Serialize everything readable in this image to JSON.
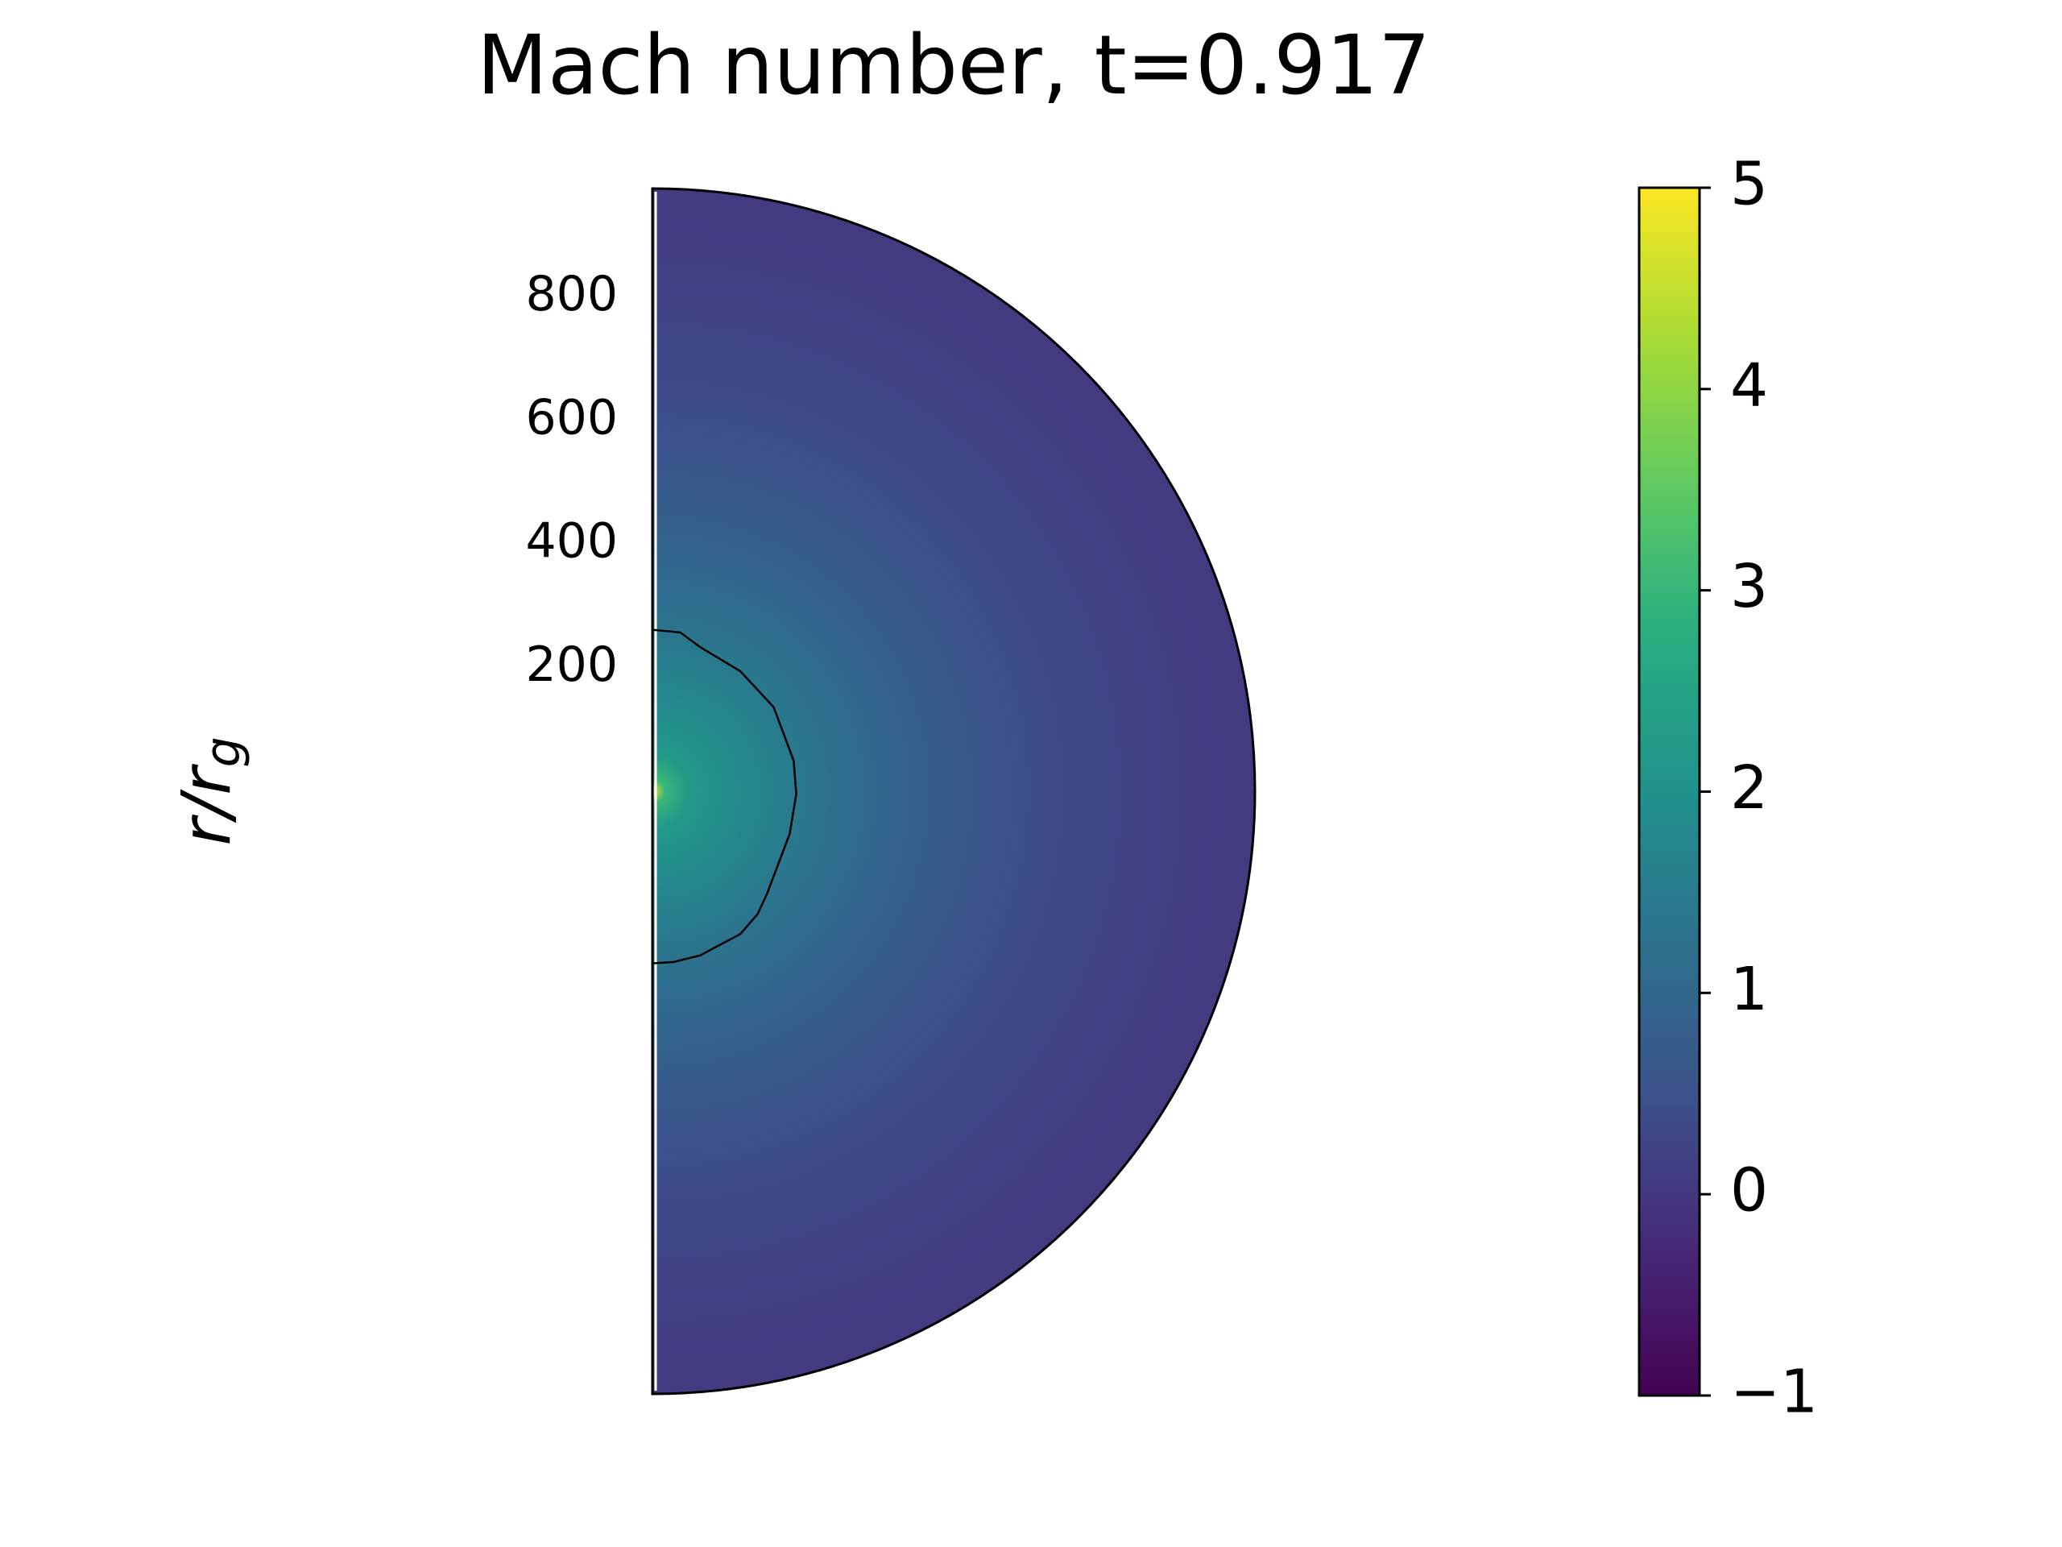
{
  "chart_data": {
    "type": "polar-heatmap",
    "title": "Mach number, t=0.917",
    "ylabel": "r/r_g",
    "rlim": [
      0,
      975
    ],
    "rticks": [
      200,
      400,
      600,
      800
    ],
    "profile": {
      "r": [
        0,
        20,
        60,
        150,
        270,
        400,
        600,
        800,
        975
      ],
      "values": [
        4.8,
        3.0,
        2.2,
        1.8,
        1.3,
        0.9,
        0.45,
        0.2,
        0.05
      ]
    },
    "colorbar": {
      "lim": [
        -1,
        5
      ],
      "ticks": [
        {
          "value": -1,
          "label": "−1"
        },
        0,
        1,
        2,
        3,
        4,
        5
      ],
      "colormap": "viridis"
    }
  }
}
